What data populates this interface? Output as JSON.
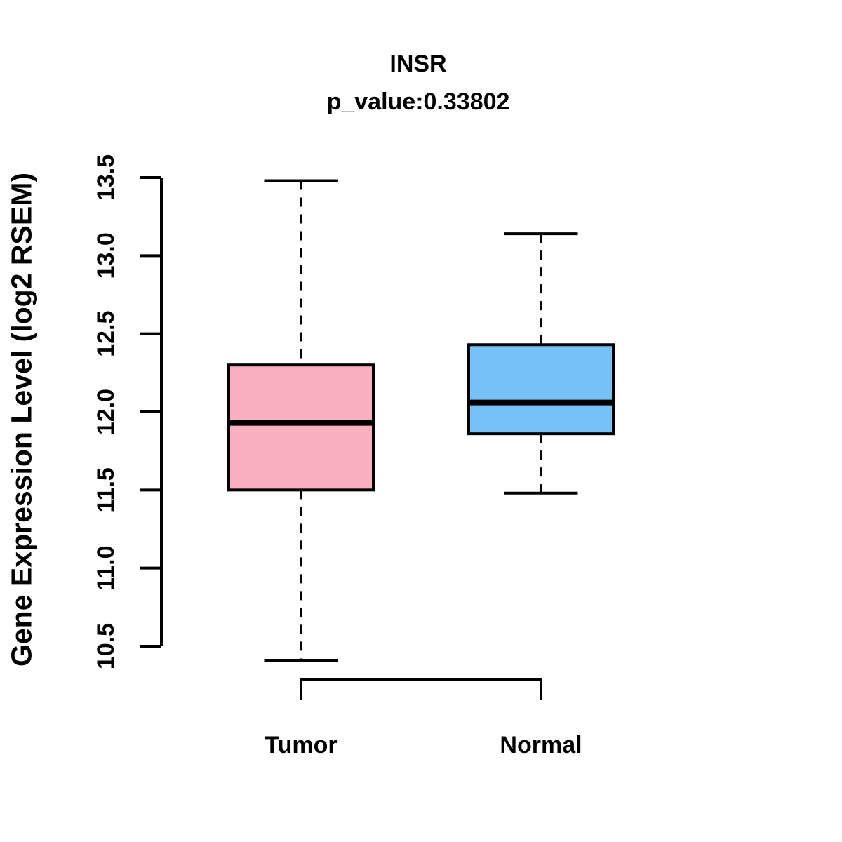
{
  "chart_data": {
    "type": "box",
    "title": "INSR",
    "subtitle": "p_value:0.33802",
    "ylabel": "Gene Expression Level (log2 RSEM)",
    "categories": [
      "Tumor",
      "Normal"
    ],
    "yticks": [
      10.5,
      11.0,
      11.5,
      12.0,
      12.5,
      13.0,
      13.5
    ],
    "ytick_labels": [
      "10.5",
      "11.0",
      "11.5",
      "12.0",
      "12.5",
      "13.0",
      "13.5"
    ],
    "ylim": [
      10.5,
      13.5
    ],
    "grid": false,
    "legend": "none",
    "series": [
      {
        "name": "Tumor",
        "fill_color": "#FBB0C2",
        "whisker_low": 10.41,
        "q1": 11.5,
        "median": 11.93,
        "q3": 12.3,
        "whisker_high": 13.48
      },
      {
        "name": "Normal",
        "fill_color": "#78C1F7",
        "whisker_low": 11.48,
        "q1": 11.86,
        "median": 12.06,
        "q3": 12.43,
        "whisker_high": 13.14
      }
    ],
    "line_color": "#000000"
  }
}
